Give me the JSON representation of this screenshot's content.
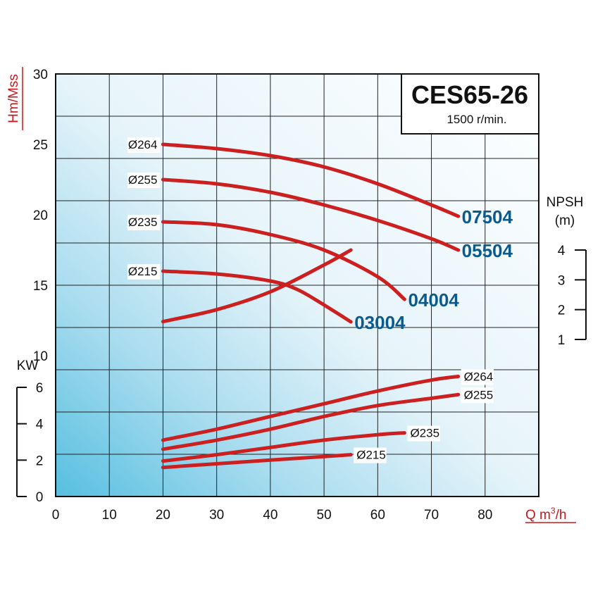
{
  "chart_data": {
    "type": "line",
    "title": "CES65-26",
    "subtitle": "1500 r/min.",
    "x": {
      "label": "Q m",
      "label_sup": "3",
      "label_tail": "/h",
      "range": [
        0,
        90
      ],
      "ticks": [
        0,
        10,
        20,
        30,
        40,
        50,
        60,
        70,
        80
      ],
      "tick_labels": [
        "0",
        "10",
        "20",
        "30",
        "40",
        "50",
        "60",
        "70",
        "80"
      ]
    },
    "head_axis": {
      "label": "Hm/Mss",
      "range": [
        0,
        30
      ],
      "ticks": [
        10,
        15,
        20,
        25,
        30
      ],
      "tick_labels": [
        "10",
        "15",
        "20",
        "25",
        "30"
      ]
    },
    "npsh_axis": {
      "label_line1": "NPSH",
      "label_line2": "(m)",
      "ticks": [
        1,
        2,
        3,
        4
      ],
      "tick_labels": [
        "1",
        "2",
        "3",
        "4"
      ]
    },
    "power_axis": {
      "label": "KW",
      "ticks": [
        0,
        2,
        4,
        6
      ],
      "tick_labels": [
        "0",
        "2",
        "4",
        "6"
      ]
    },
    "grid": true,
    "head_curves": [
      {
        "diameter": "Ø264",
        "model": "07504",
        "color": "#cc1f1f",
        "x": [
          20,
          30,
          40,
          50,
          60,
          70,
          75
        ],
        "y": [
          25.0,
          24.7,
          24.2,
          23.4,
          22.2,
          20.7,
          19.9
        ]
      },
      {
        "diameter": "Ø255",
        "model": "05504",
        "color": "#cc1f1f",
        "x": [
          20,
          30,
          40,
          50,
          60,
          70,
          75
        ],
        "y": [
          22.5,
          22.2,
          21.6,
          20.7,
          19.6,
          18.3,
          17.5
        ]
      },
      {
        "diameter": "Ø235",
        "model": "04004",
        "color": "#cc1f1f",
        "x": [
          20,
          30,
          40,
          50,
          60,
          65
        ],
        "y": [
          19.5,
          19.3,
          18.6,
          17.5,
          15.6,
          14.0
        ]
      },
      {
        "diameter": "Ø215",
        "model": "03004",
        "color": "#cc1f1f",
        "x": [
          20,
          30,
          40,
          45,
          50,
          55
        ],
        "y": [
          16.0,
          15.8,
          15.3,
          14.7,
          13.6,
          12.4
        ]
      }
    ],
    "npsh_curve": {
      "color": "#cc1f1f",
      "x": [
        20,
        30,
        40,
        50,
        55
      ],
      "y": [
        1.6,
        2.0,
        2.6,
        3.5,
        4.0
      ]
    },
    "power_curves": [
      {
        "diameter": "Ø264",
        "color": "#cc1f1f",
        "x": [
          20,
          30,
          40,
          50,
          60,
          70,
          75
        ],
        "y": [
          3.1,
          3.7,
          4.4,
          5.1,
          5.8,
          6.4,
          6.6
        ]
      },
      {
        "diameter": "Ø255",
        "color": "#cc1f1f",
        "x": [
          20,
          30,
          40,
          50,
          60,
          70,
          75
        ],
        "y": [
          2.6,
          3.1,
          3.7,
          4.4,
          5.0,
          5.4,
          5.6
        ]
      },
      {
        "diameter": "Ø235",
        "color": "#cc1f1f",
        "x": [
          20,
          30,
          40,
          50,
          60,
          65
        ],
        "y": [
          1.95,
          2.3,
          2.7,
          3.1,
          3.4,
          3.5
        ]
      },
      {
        "diameter": "Ø215",
        "color": "#cc1f1f",
        "x": [
          20,
          30,
          40,
          50,
          55
        ],
        "y": [
          1.6,
          1.8,
          2.0,
          2.2,
          2.3
        ]
      }
    ]
  }
}
